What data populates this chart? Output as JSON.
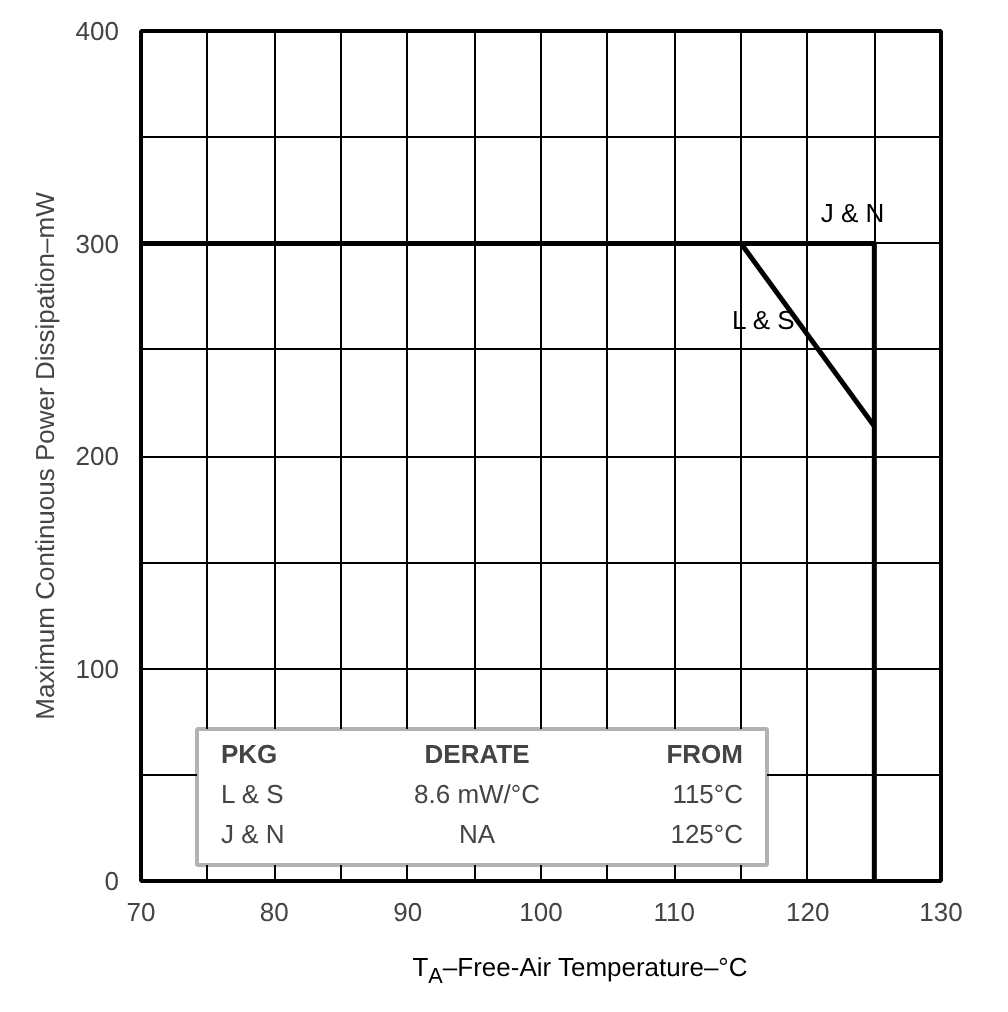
{
  "chart_data": {
    "type": "line",
    "xlabel": "T$_{A}$–Free-Air Temperature–°C",
    "ylabel": "Maximum Continuous Power Dissipation–mW",
    "xlim": [
      70,
      130
    ],
    "xticks": [
      70,
      {
        "value": 75,
        "label": null
      },
      80,
      {
        "value": 85,
        "label": null
      },
      90,
      {
        "value": 95,
        "label": null
      },
      100,
      {
        "value": 105,
        "label": null
      },
      110,
      {
        "value": 115,
        "label": null
      },
      120,
      {
        "value": 125,
        "label": null
      },
      130
    ],
    "ylim": [
      0,
      400
    ],
    "yticks": [
      0,
      {
        "value": 50,
        "label": null
      },
      100,
      {
        "value": 150,
        "label": null
      },
      200,
      {
        "value": 250,
        "label": null
      },
      300,
      {
        "value": 350,
        "label": null
      },
      400
    ],
    "grid": true,
    "series": [
      {
        "name": "J & N",
        "color": "#000000",
        "x": [
          70,
          125,
          125
        ],
        "values": [
          300,
          300,
          0
        ]
      },
      {
        "name": "L & S",
        "color": "#000000",
        "x": [
          115,
          125
        ],
        "values": [
          300,
          214
        ]
      }
    ],
    "annotations": [
      "PKG",
      "DERATE",
      "FROM",
      "L & S",
      "8.6 mW/°C",
      "115°C",
      "J & N",
      "NA",
      "125°C"
    ]
  }
}
